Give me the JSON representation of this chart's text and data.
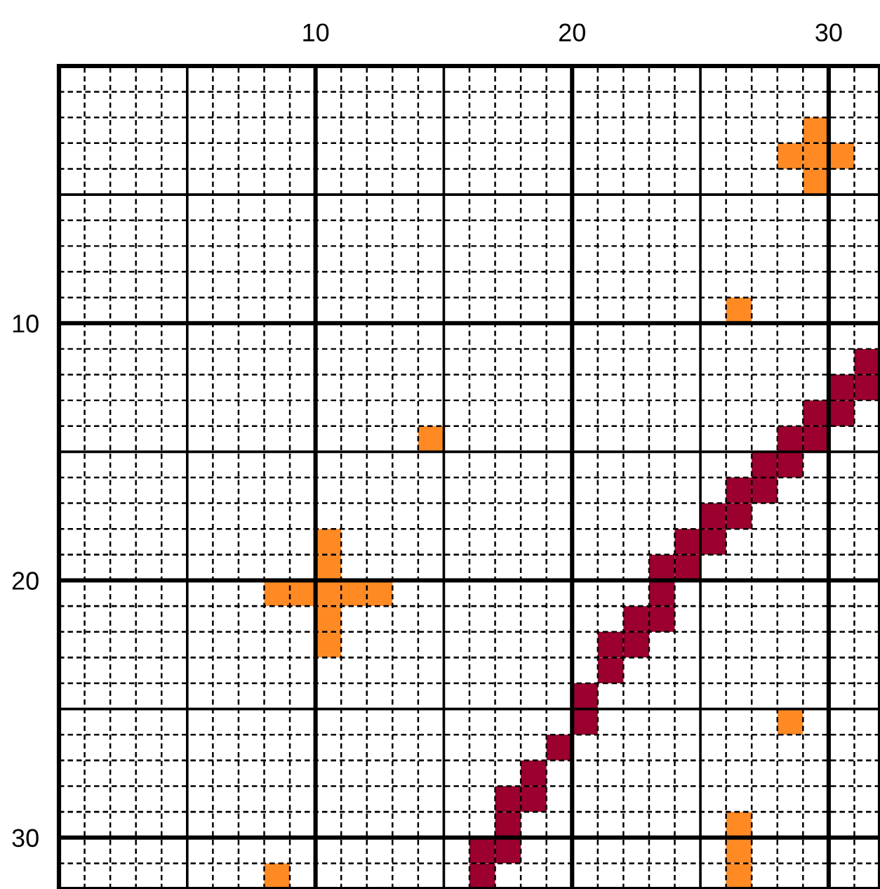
{
  "chart_data": {
    "type": "scatter",
    "marker": "square",
    "grid": true,
    "legend": false,
    "xlim": [
      0,
      32
    ],
    "ylim": [
      32,
      0
    ],
    "xticks": [
      10,
      20,
      30
    ],
    "yticks": [
      10,
      20,
      30
    ],
    "series": [
      {
        "color": "#ff8a24",
        "x": [
          29.5,
          28.5,
          29.5,
          30.5,
          29.5,
          26.5,
          14.5,
          10.5,
          10.5,
          8.5,
          9.5,
          10.5,
          11.5,
          12.5,
          10.5,
          10.5,
          28.5,
          26.5,
          26.5,
          26.5,
          8.5
        ],
        "values": [
          2.5,
          3.5,
          3.5,
          3.5,
          4.5,
          9.5,
          14.5,
          18.5,
          19.5,
          20.5,
          20.5,
          20.5,
          20.5,
          20.5,
          21.5,
          22.5,
          25.5,
          29.5,
          30.5,
          31.5,
          31.5
        ]
      },
      {
        "color": "#9b002e",
        "x": [
          31.5,
          31.5,
          30.5,
          30.5,
          29.5,
          29.5,
          28.5,
          28.5,
          27.5,
          27.5,
          26.5,
          26.5,
          25.5,
          25.5,
          24.5,
          24.5,
          23.5,
          23.5,
          23.5,
          22.5,
          22.5,
          21.5,
          21.5,
          20.5,
          20.5,
          19.5,
          18.5,
          18.5,
          17.5,
          17.5,
          17.5,
          16.5,
          16.5
        ],
        "values": [
          11.5,
          12.5,
          12.5,
          13.5,
          13.5,
          14.5,
          14.5,
          15.5,
          15.5,
          16.5,
          16.5,
          17.5,
          17.5,
          18.5,
          18.5,
          19.5,
          19.5,
          20.5,
          21.5,
          21.5,
          22.5,
          22.5,
          23.5,
          24.5,
          25.5,
          26.5,
          27.5,
          28.5,
          28.5,
          29.5,
          30.5,
          30.5,
          31.5
        ]
      }
    ]
  }
}
